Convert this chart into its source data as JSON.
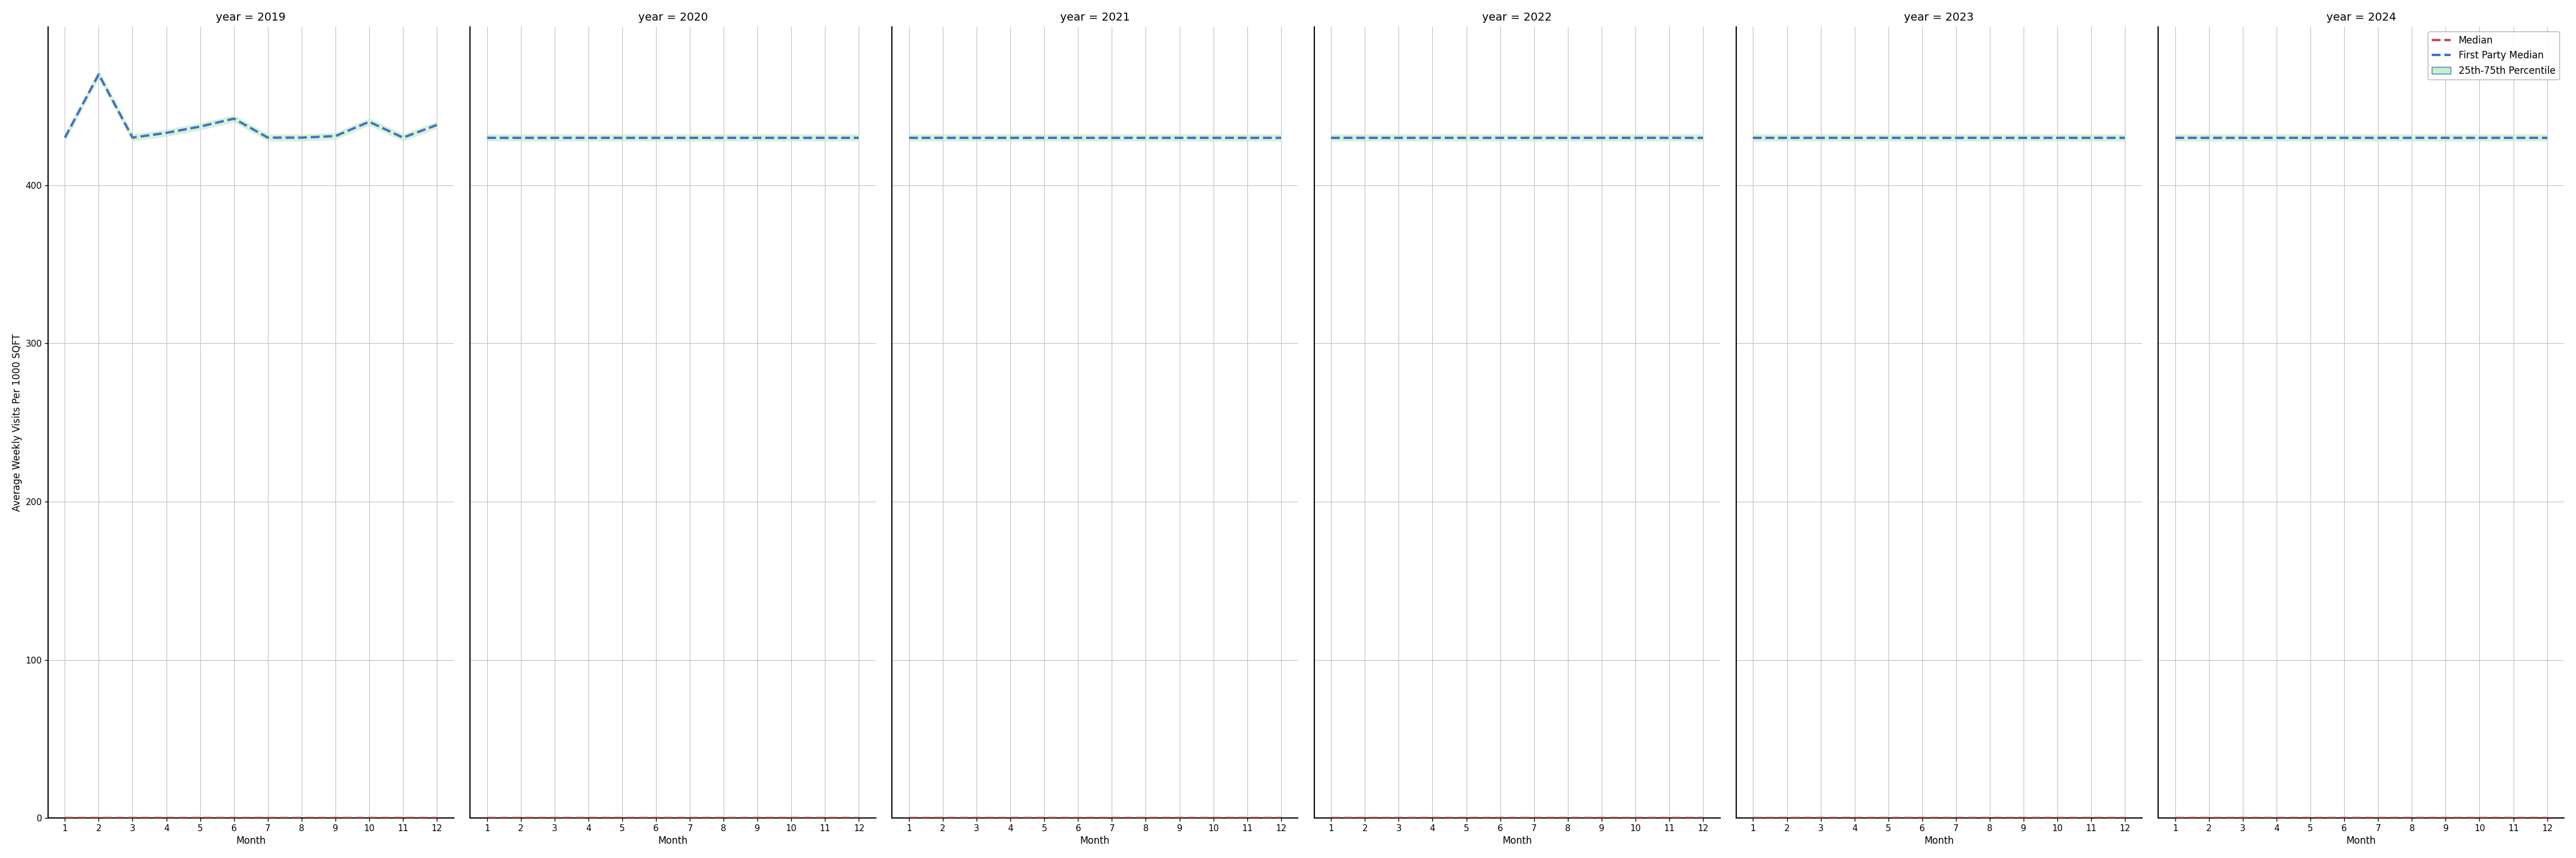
{
  "years": [
    2019,
    2020,
    2021,
    2022,
    2023,
    2024
  ],
  "months": [
    1,
    2,
    3,
    4,
    5,
    6,
    7,
    8,
    9,
    10,
    11,
    12
  ],
  "first_party_median": {
    "2019": [
      430,
      470,
      430,
      433,
      437,
      442,
      430,
      430,
      431,
      440,
      430,
      438
    ],
    "2020": [
      430,
      430,
      430,
      430,
      430,
      430,
      430,
      430,
      430,
      430,
      430,
      430
    ],
    "2021": [
      430,
      430,
      430,
      430,
      430,
      430,
      430,
      430,
      430,
      430,
      430,
      430
    ],
    "2022": [
      430,
      430,
      430,
      430,
      430,
      430,
      430,
      430,
      430,
      430,
      430,
      430
    ],
    "2023": [
      430,
      430,
      430,
      430,
      430,
      430,
      430,
      430,
      430,
      430,
      430,
      430
    ],
    "2024": [
      430,
      430,
      430,
      430,
      430,
      430,
      430,
      430,
      430,
      430,
      430,
      430
    ]
  },
  "median": {
    "2019": [
      0,
      0,
      0,
      0,
      0,
      0,
      0,
      0,
      0,
      0,
      0,
      0
    ],
    "2020": [
      0,
      0,
      0,
      0,
      0,
      0,
      0,
      0,
      0,
      0,
      0,
      0
    ],
    "2021": [
      0,
      0,
      0,
      0,
      0,
      0,
      0,
      0,
      0,
      0,
      0,
      0
    ],
    "2022": [
      0,
      0,
      0,
      0,
      0,
      0,
      0,
      0,
      0,
      0,
      0,
      0
    ],
    "2023": [
      0,
      0,
      0,
      0,
      0,
      0,
      0,
      0,
      0,
      0,
      0,
      0
    ],
    "2024": [
      0,
      0,
      0,
      0,
      0,
      0,
      0,
      0,
      0,
      0,
      0,
      0
    ]
  },
  "pct25": {
    "2019": [
      428,
      468,
      428,
      431,
      435,
      440,
      428,
      428,
      429,
      438,
      428,
      436
    ],
    "2020": [
      428,
      428,
      428,
      428,
      428,
      428,
      428,
      428,
      428,
      428,
      428,
      428
    ],
    "2021": [
      428,
      428,
      428,
      428,
      428,
      428,
      428,
      428,
      428,
      428,
      428,
      428
    ],
    "2022": [
      428,
      428,
      428,
      428,
      428,
      428,
      428,
      428,
      428,
      428,
      428,
      428
    ],
    "2023": [
      428,
      428,
      428,
      428,
      428,
      428,
      428,
      428,
      428,
      428,
      428,
      428
    ],
    "2024": [
      428,
      428,
      428,
      428,
      428,
      428,
      428,
      428,
      428,
      428,
      428,
      428
    ]
  },
  "pct75": {
    "2019": [
      432,
      472,
      432,
      435,
      439,
      444,
      432,
      432,
      433,
      442,
      432,
      440
    ],
    "2020": [
      432,
      432,
      432,
      432,
      432,
      432,
      432,
      432,
      432,
      432,
      432,
      432
    ],
    "2021": [
      432,
      432,
      432,
      432,
      432,
      432,
      432,
      432,
      432,
      432,
      432,
      432
    ],
    "2022": [
      432,
      432,
      432,
      432,
      432,
      432,
      432,
      432,
      432,
      432,
      432,
      432
    ],
    "2023": [
      432,
      432,
      432,
      432,
      432,
      432,
      432,
      432,
      432,
      432,
      432,
      432
    ],
    "2024": [
      432,
      432,
      432,
      432,
      432,
      432,
      432,
      432,
      432,
      432,
      432,
      432
    ]
  },
  "ylim": [
    0,
    500
  ],
  "yticks": [
    0,
    100,
    200,
    300,
    400
  ],
  "ylabel": "Average Weekly Visits Per 1000 SQFT",
  "xlabel": "Month",
  "median_color": "#c0504d",
  "first_party_median_color": "#4472c4",
  "percentile_fill_color": "#c6efce",
  "percentile_line_color": "#4472c4",
  "grid_color": "#c0c0c0",
  "spine_color": "#000000",
  "title_fontsize": 14,
  "label_fontsize": 12,
  "tick_fontsize": 11,
  "legend_fontsize": 12,
  "linewidth": 2.0,
  "legend_labels": [
    "Median",
    "First Party Median",
    "25th-75th Percentile"
  ]
}
